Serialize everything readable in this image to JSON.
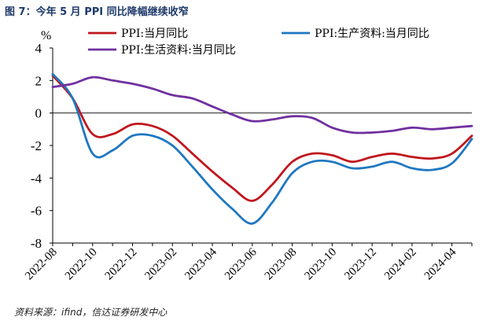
{
  "figure": {
    "title": "图 7：今年 5 月 PPI 同比降幅继续收窄",
    "source": "资料来源：ifind，信达证券研发中心"
  },
  "chart_data": {
    "type": "line",
    "unit": "%",
    "ylim": [
      -8,
      4
    ],
    "yticks": [
      4,
      2,
      0,
      -2,
      -4,
      -6,
      -8
    ],
    "x": [
      "2022-08",
      "2022-09",
      "2022-10",
      "2022-11",
      "2022-12",
      "2023-01",
      "2023-02",
      "2023-03",
      "2023-04",
      "2023-05",
      "2023-06",
      "2023-07",
      "2023-08",
      "2023-09",
      "2023-10",
      "2023-11",
      "2023-12",
      "2024-01",
      "2024-02",
      "2024-03",
      "2024-04",
      "2024-05"
    ],
    "xtick_labels": [
      "2022-08",
      "2022-10",
      "2022-12",
      "2023-02",
      "2023-04",
      "2023-06",
      "2023-08",
      "2023-10",
      "2023-12",
      "2024-02",
      "2024-04"
    ],
    "legend_placement": "top",
    "series": [
      {
        "name": "PPI:当月同比",
        "color": "#c0161d",
        "values": [
          2.3,
          0.9,
          -1.3,
          -1.3,
          -0.7,
          -0.8,
          -1.4,
          -2.5,
          -3.6,
          -4.6,
          -5.4,
          -4.4,
          -3.0,
          -2.5,
          -2.6,
          -3.0,
          -2.7,
          -2.5,
          -2.7,
          -2.8,
          -2.5,
          -1.4
        ]
      },
      {
        "name": "PPI:生产资料:当月同比",
        "color": "#1f78c1",
        "values": [
          2.4,
          0.9,
          -2.5,
          -2.3,
          -1.4,
          -1.4,
          -2.0,
          -3.3,
          -4.7,
          -5.9,
          -6.8,
          -5.5,
          -3.7,
          -3.0,
          -3.0,
          -3.4,
          -3.3,
          -3.0,
          -3.4,
          -3.5,
          -3.1,
          -1.6
        ]
      },
      {
        "name": "PPI:生活资料:当月同比",
        "color": "#7030a0",
        "values": [
          1.6,
          1.8,
          2.2,
          2.0,
          1.8,
          1.5,
          1.1,
          0.9,
          0.4,
          -0.1,
          -0.5,
          -0.4,
          -0.2,
          -0.3,
          -0.9,
          -1.2,
          -1.2,
          -1.1,
          -0.9,
          -1.0,
          -0.9,
          -0.8
        ]
      }
    ]
  }
}
